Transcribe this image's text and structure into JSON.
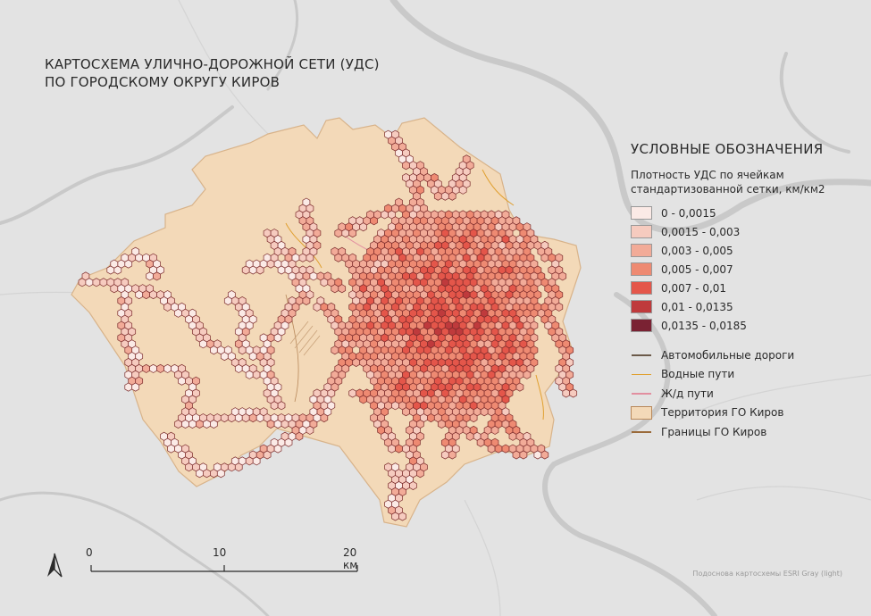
{
  "title": {
    "line1": "КАРТОСХЕМА УЛИЧНО-ДОРОЖНОЙ СЕТИ (УДС)",
    "line2": "ПО ГОРОДСКОМУ ОКРУГУ КИРОВ"
  },
  "legend": {
    "heading": "УСЛОВНЫЕ ОБОЗНАЧЕНИЯ",
    "subtitle_line1": "Плотность УДС по ячейкам",
    "subtitle_line2": "стандартизованной сетки, км/км2",
    "classes": [
      {
        "label": "0 - 0,0015",
        "color": "#fbeae6"
      },
      {
        "label": "0,0015 - 0,003",
        "color": "#f6cbbf"
      },
      {
        "label": "0,003 - 0,005",
        "color": "#f2ab98"
      },
      {
        "label": "0,005 - 0,007",
        "color": "#ee8a72"
      },
      {
        "label": "0,007 - 0,01",
        "color": "#e4564a"
      },
      {
        "label": "0,01 - 0,0135",
        "color": "#bf3a3c"
      },
      {
        "label": "0,0135 - 0,0185",
        "color": "#7a2233"
      }
    ],
    "layers": [
      {
        "label": "Автомобильные дороги",
        "kind": "line",
        "color": "#6b5a4a"
      },
      {
        "label": "Водные пути",
        "kind": "line",
        "color": "#e0a030"
      },
      {
        "label": "Ж/д пути",
        "kind": "line",
        "color": "#e28fa0"
      },
      {
        "label": "Территория ГО Киров",
        "kind": "fill",
        "color": "#f3d9b8"
      },
      {
        "label": "Границы ГО Киров",
        "kind": "line",
        "color": "#9a6a3a"
      }
    ]
  },
  "scalebar": {
    "labels": [
      "0",
      "10",
      "20 км"
    ],
    "km": [
      0,
      10,
      20
    ]
  },
  "credit": "Подоснова картосхемы ESRI Gray (light)",
  "map_colors": {
    "basemap": "#e3e3e3",
    "water": "#c9c9c9",
    "hex_stroke": "#7a2a2a",
    "territory_stroke": "#d8b38a"
  }
}
